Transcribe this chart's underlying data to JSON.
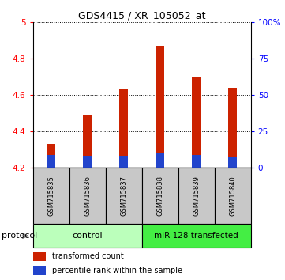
{
  "title": "GDS4415 / XR_105052_at",
  "samples": [
    "GSM715835",
    "GSM715836",
    "GSM715837",
    "GSM715838",
    "GSM715839",
    "GSM715840"
  ],
  "base": 4.2,
  "red_tops": [
    4.33,
    4.49,
    4.63,
    4.87,
    4.7,
    4.64
  ],
  "blue_tops": [
    4.27,
    4.265,
    4.265,
    4.285,
    4.27,
    4.26
  ],
  "ylim_left": [
    4.2,
    5.0
  ],
  "ylim_right": [
    0,
    100
  ],
  "yticks_left": [
    4.2,
    4.4,
    4.6,
    4.8,
    5.0
  ],
  "ytick_labels_left": [
    "4.2",
    "4.4",
    "4.6",
    "4.8",
    "5"
  ],
  "yticks_right": [
    0,
    25,
    50,
    75,
    100
  ],
  "ytick_labels_right": [
    "0",
    "25",
    "50",
    "75",
    "100%"
  ],
  "bar_width": 0.25,
  "red_color": "#cc2200",
  "blue_color": "#2244cc",
  "control_label": "control",
  "transfected_label": "miR-128 transfected",
  "protocol_label": "protocol",
  "legend_red": "transformed count",
  "legend_blue": "percentile rank within the sample",
  "control_color": "#bbffbb",
  "transfected_color": "#44ee44",
  "sample_bg_color": "#c8c8c8",
  "title_fontsize": 9,
  "tick_fontsize": 7.5,
  "label_fontsize": 7,
  "sample_fontsize": 6
}
